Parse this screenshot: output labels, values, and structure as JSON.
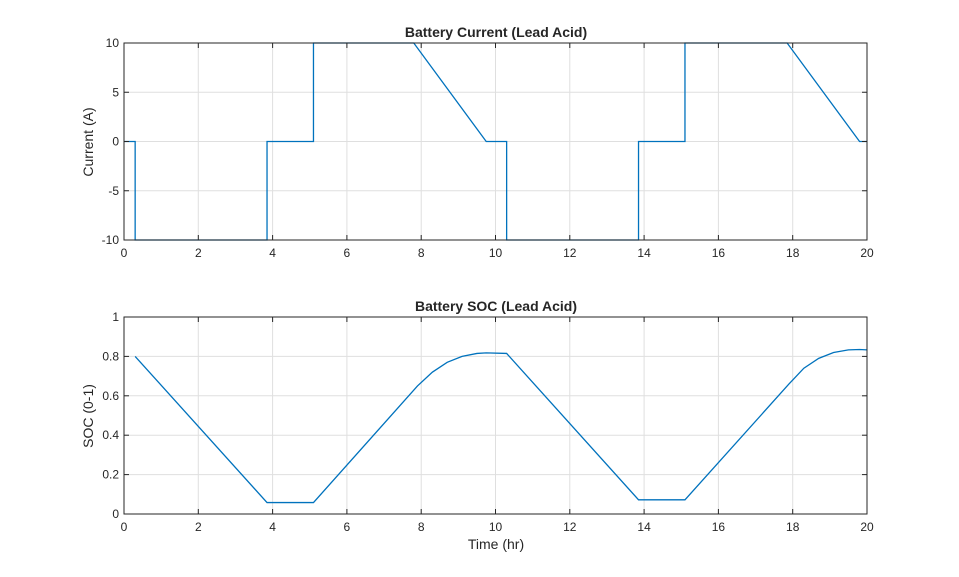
{
  "chart_data": [
    {
      "type": "line",
      "title": "Battery Current (Lead Acid)",
      "xlabel": "",
      "ylabel": "Current (A)",
      "xlim": [
        0,
        20
      ],
      "ylim": [
        -10,
        10
      ],
      "xticks": [
        "0",
        "2",
        "4",
        "6",
        "8",
        "10",
        "12",
        "14",
        "16",
        "18",
        "20"
      ],
      "yticks": [
        "-10",
        "-5",
        "0",
        "5",
        "10"
      ],
      "grid": true,
      "color": "#0072BD",
      "series": [
        {
          "x": [
            0,
            0.3,
            0.3,
            3.85,
            3.85,
            5.1,
            5.1,
            7.8,
            9.75,
            10.3,
            10.3,
            13.85,
            13.85,
            15.1,
            15.1,
            17.85,
            19.8,
            20
          ],
          "values": [
            0,
            0,
            -10,
            -10,
            0,
            0,
            10,
            10,
            0,
            0,
            -10,
            -10,
            0,
            0,
            10,
            10,
            0,
            0
          ]
        }
      ]
    },
    {
      "type": "line",
      "title": "Battery SOC (Lead Acid)",
      "xlabel": "Time (hr)",
      "ylabel": "SOC (0-1)",
      "xlim": [
        0,
        20
      ],
      "ylim": [
        0,
        1
      ],
      "xticks": [
        "0",
        "2",
        "4",
        "6",
        "8",
        "10",
        "12",
        "14",
        "16",
        "18",
        "20"
      ],
      "yticks": [
        "0",
        "0.2",
        "0.4",
        "0.6",
        "0.8",
        "1"
      ],
      "grid": true,
      "color": "#0072BD",
      "series": [
        {
          "x": [
            0.3,
            3.85,
            5.1,
            7.9,
            8.3,
            8.7,
            9.1,
            9.5,
            9.75,
            10.3,
            13.85,
            15.1,
            17.9,
            18.3,
            18.7,
            19.1,
            19.5,
            19.8,
            20
          ],
          "values": [
            0.8,
            0.058,
            0.058,
            0.65,
            0.72,
            0.77,
            0.8,
            0.815,
            0.818,
            0.815,
            0.072,
            0.072,
            0.66,
            0.74,
            0.79,
            0.82,
            0.833,
            0.835,
            0.833
          ]
        }
      ]
    }
  ]
}
